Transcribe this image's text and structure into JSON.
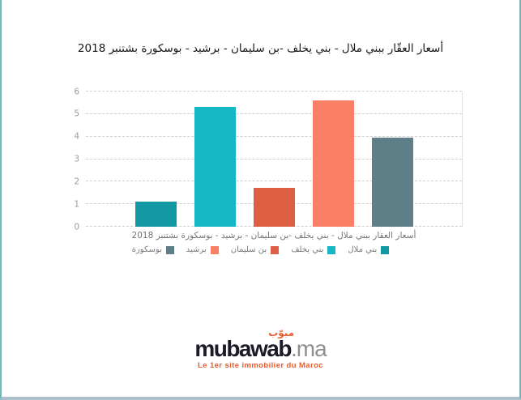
{
  "frame": {
    "side_border_color": "#68bcba",
    "bottom_border_color": "#adc0ca"
  },
  "chart_data": {
    "type": "bar",
    "title": "أسعار العقّار ببني ملال - بني يخلف -بن سليمان - برشيد - بوسكورة بشتنبر 2018",
    "xlabel": "أسعار العقار ببني ملال - بني يخلف -بن سليمان - برشيد - بوسكورة بشتنبر 2018",
    "ylabel": "",
    "direction": "rtl",
    "categories": [
      "بني ملال",
      "بني يخلف",
      "بن سليمان",
      "برشيد",
      "بوسكورة"
    ],
    "values": [
      1.1,
      5.3,
      1.73,
      5.6,
      3.95
    ],
    "colors": [
      "#1299a4",
      "#17b8c6",
      "#dc5f44",
      "#f98066",
      "#5e7f88"
    ],
    "ylim": [
      0,
      6
    ],
    "yticks": [
      0,
      1,
      2,
      3,
      4,
      5,
      6
    ],
    "grid": "horizontal-dashed",
    "grid_color": "#cfcfcf",
    "legend_position": "bottom-center"
  },
  "logo": {
    "arabic": "مبوّب",
    "brand": "mubawab",
    "tld": ".ma",
    "tagline": "Le 1er site immobilier du Maroc",
    "brand_color": "#1b1b28",
    "tld_color": "#8f8f8f",
    "accent_color": "#ea5b2d"
  }
}
